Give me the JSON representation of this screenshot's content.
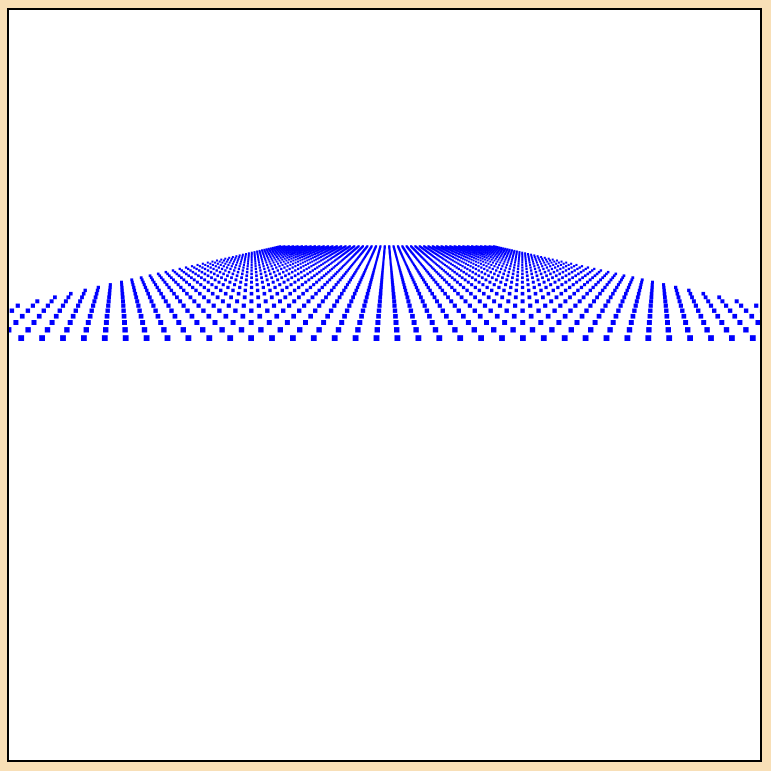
{
  "scene": {
    "type": "3d-point-grid",
    "colors": {
      "page_background": "#f8dfb7",
      "viewport_background": "#ffffff",
      "frame_border": "#000000",
      "point_color": "#0000ff"
    }
  }
}
